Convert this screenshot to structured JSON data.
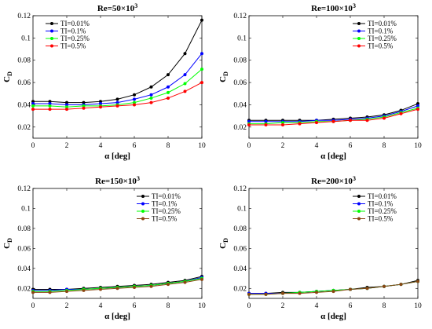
{
  "chart_data": [
    {
      "type": "line",
      "title": "Re=50×10",
      "title_sup": "3",
      "xlabel": "α [deg]",
      "ylabel": "C",
      "ylabel_sub": "D",
      "xlim": [
        0,
        10
      ],
      "ylim": [
        0.01,
        0.12
      ],
      "xticks": [
        0,
        2,
        4,
        6,
        8,
        10
      ],
      "yticks": [
        0.02,
        0.04,
        0.06,
        0.08,
        0.1,
        0.12
      ],
      "ytick_labels": [
        "0.02",
        "0.04",
        "0.06",
        "0.08",
        "0.1",
        "0.12"
      ],
      "legend_position": "top-left",
      "x": [
        0,
        1,
        2,
        3,
        4,
        5,
        6,
        7,
        8,
        9,
        10
      ],
      "series": [
        {
          "name": "TI=0.01%",
          "color": "#000000",
          "values": [
            0.043,
            0.043,
            0.042,
            0.042,
            0.043,
            0.045,
            0.049,
            0.056,
            0.067,
            0.086,
            0.116
          ]
        },
        {
          "name": "TI=0.1%",
          "color": "#0000ff",
          "values": [
            0.041,
            0.041,
            0.04,
            0.04,
            0.041,
            0.042,
            0.045,
            0.049,
            0.056,
            0.067,
            0.086
          ]
        },
        {
          "name": "TI=0.25%",
          "color": "#00ff00",
          "values": [
            0.039,
            0.039,
            0.038,
            0.039,
            0.039,
            0.04,
            0.042,
            0.046,
            0.051,
            0.059,
            0.072
          ]
        },
        {
          "name": "TI=0.5%",
          "color": "#ff0000",
          "values": [
            0.036,
            0.036,
            0.036,
            0.037,
            0.038,
            0.039,
            0.04,
            0.042,
            0.046,
            0.052,
            0.06
          ]
        }
      ]
    },
    {
      "type": "line",
      "title": "Re=100×10",
      "title_sup": "3",
      "xlabel": "α [deg]",
      "ylabel": "C",
      "ylabel_sub": "D",
      "xlim": [
        0,
        10
      ],
      "ylim": [
        0.01,
        0.12
      ],
      "xticks": [
        0,
        2,
        4,
        6,
        8,
        10
      ],
      "yticks": [
        0.02,
        0.04,
        0.06,
        0.08,
        0.1,
        0.12
      ],
      "ytick_labels": [
        "0.02",
        "0.04",
        "0.06",
        "0.08",
        "0.1",
        "0.12"
      ],
      "legend_position": "top-right",
      "x": [
        0,
        1,
        2,
        3,
        4,
        5,
        6,
        7,
        8,
        9,
        10
      ],
      "series": [
        {
          "name": "TI=0.01%",
          "color": "#000000",
          "values": [
            0.026,
            0.026,
            0.026,
            0.026,
            0.026,
            0.027,
            0.028,
            0.029,
            0.031,
            0.035,
            0.041
          ]
        },
        {
          "name": "TI=0.1%",
          "color": "#0000ff",
          "values": [
            0.025,
            0.025,
            0.025,
            0.025,
            0.026,
            0.026,
            0.027,
            0.028,
            0.03,
            0.034,
            0.039
          ]
        },
        {
          "name": "TI=0.25%",
          "color": "#00ff00",
          "values": [
            0.023,
            0.023,
            0.024,
            0.024,
            0.025,
            0.025,
            0.026,
            0.027,
            0.029,
            0.033,
            0.037
          ]
        },
        {
          "name": "TI=0.5%",
          "color": "#ff0000",
          "values": [
            0.022,
            0.022,
            0.022,
            0.023,
            0.024,
            0.025,
            0.026,
            0.026,
            0.028,
            0.032,
            0.036
          ]
        }
      ]
    },
    {
      "type": "line",
      "title": "Re=150×10",
      "title_sup": "3",
      "xlabel": "α [deg]",
      "ylabel": "C",
      "ylabel_sub": "D",
      "xlim": [
        0,
        10
      ],
      "ylim": [
        0.01,
        0.12
      ],
      "xticks": [
        0,
        2,
        4,
        6,
        8,
        10
      ],
      "yticks": [
        0.02,
        0.04,
        0.06,
        0.08,
        0.1,
        0.12
      ],
      "ytick_labels": [
        "0.02",
        "0.04",
        "0.06",
        "0.08",
        "0.1",
        "0.12"
      ],
      "legend_position": "top-right",
      "x": [
        0,
        1,
        2,
        3,
        4,
        5,
        6,
        7,
        8,
        9,
        10
      ],
      "series": [
        {
          "name": "TI=0.01%",
          "color": "#000000",
          "values": [
            0.019,
            0.019,
            0.019,
            0.02,
            0.021,
            0.022,
            0.023,
            0.024,
            0.026,
            0.028,
            0.032
          ]
        },
        {
          "name": "TI=0.1%",
          "color": "#0000ff",
          "values": [
            0.018,
            0.018,
            0.019,
            0.019,
            0.02,
            0.021,
            0.022,
            0.023,
            0.025,
            0.027,
            0.031
          ]
        },
        {
          "name": "TI=0.25%",
          "color": "#00ff00",
          "values": [
            0.017,
            0.017,
            0.018,
            0.019,
            0.02,
            0.021,
            0.022,
            0.023,
            0.025,
            0.027,
            0.03
          ]
        },
        {
          "name": "TI=0.5%",
          "color": "#8b4513",
          "values": [
            0.016,
            0.016,
            0.017,
            0.018,
            0.019,
            0.02,
            0.021,
            0.022,
            0.024,
            0.026,
            0.029
          ]
        }
      ]
    },
    {
      "type": "line",
      "title": "Re=200×10",
      "title_sup": "3",
      "xlabel": "α [deg]",
      "ylabel": "C",
      "ylabel_sub": "D",
      "xlim": [
        0,
        10
      ],
      "ylim": [
        0.01,
        0.12
      ],
      "xticks": [
        0,
        2,
        4,
        6,
        8,
        10
      ],
      "yticks": [
        0.02,
        0.04,
        0.06,
        0.08,
        0.1,
        0.12
      ],
      "ytick_labels": [
        "0.02",
        "0.04",
        "0.06",
        "0.08",
        "0.1",
        "0.12"
      ],
      "legend_position": "top-right",
      "x": [
        0,
        1,
        2,
        3,
        4,
        5,
        6,
        7,
        8,
        9,
        10
      ],
      "series": [
        {
          "name": "TI=0.01%",
          "color": "#000000",
          "values": [
            0.015,
            0.015,
            0.016,
            0.016,
            0.017,
            0.018,
            0.019,
            0.021,
            0.022,
            0.024,
            0.028
          ]
        },
        {
          "name": "TI=0.1%",
          "color": "#0000ff",
          "values": [
            0.015,
            0.015,
            0.015,
            0.016,
            0.017,
            0.018,
            0.019,
            0.02,
            0.022,
            0.024,
            0.027
          ]
        },
        {
          "name": "TI=0.25%",
          "color": "#00ff00",
          "values": [
            0.014,
            0.014,
            0.015,
            0.016,
            0.017,
            0.018,
            0.019,
            0.02,
            0.022,
            0.024,
            0.027
          ]
        },
        {
          "name": "TI=0.5%",
          "color": "#8b4513",
          "values": [
            0.014,
            0.014,
            0.015,
            0.015,
            0.016,
            0.017,
            0.019,
            0.02,
            0.022,
            0.024,
            0.027
          ]
        }
      ]
    }
  ]
}
